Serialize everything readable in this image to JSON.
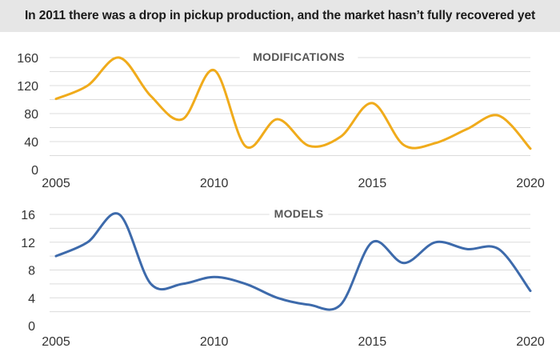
{
  "header": {
    "text": "In 2011 there was a drop in pickup production, and the market hasn’t fully recovered yet"
  },
  "colors": {
    "header_bg": "#e6e6e6",
    "modifications_line": "#f0ab1b",
    "models_line": "#3d6aab",
    "grid": "#dcdcdc"
  },
  "chart_data": [
    {
      "type": "line",
      "title": "MODIFICATIONS",
      "xlabel": "",
      "ylabel": "",
      "x_ticks": [
        "2005",
        "2010",
        "2015",
        "2020"
      ],
      "y_ticks": [
        "0",
        "40",
        "80",
        "120",
        "160"
      ],
      "xlim": [
        2005,
        2020
      ],
      "ylim": [
        0,
        160
      ],
      "grid": true,
      "smooth": true,
      "series": [
        {
          "x": [
            2005,
            2006,
            2007,
            2008,
            2009,
            2010,
            2011,
            2012,
            2013,
            2014,
            2015,
            2016,
            2017,
            2018,
            2019,
            2020
          ],
          "y": [
            101,
            120,
            160,
            105,
            72,
            142,
            33,
            72,
            34,
            47,
            95,
            35,
            38,
            58,
            77,
            30
          ]
        }
      ]
    },
    {
      "type": "line",
      "title": "MODELS",
      "xlabel": "",
      "ylabel": "",
      "x_ticks": [
        "2005",
        "2010",
        "2015",
        "2020"
      ],
      "y_ticks": [
        "0",
        "4",
        "8",
        "12",
        "16"
      ],
      "xlim": [
        2005,
        2020
      ],
      "ylim": [
        0,
        16
      ],
      "grid": true,
      "smooth": true,
      "series": [
        {
          "x": [
            2005,
            2006,
            2007,
            2008,
            2009,
            2010,
            2011,
            2012,
            2013,
            2014,
            2015,
            2016,
            2017,
            2018,
            2019,
            2020
          ],
          "y": [
            10,
            12,
            16,
            6,
            6,
            7,
            6,
            4,
            3,
            3,
            12,
            9,
            12,
            11,
            11,
            5
          ]
        }
      ]
    }
  ]
}
